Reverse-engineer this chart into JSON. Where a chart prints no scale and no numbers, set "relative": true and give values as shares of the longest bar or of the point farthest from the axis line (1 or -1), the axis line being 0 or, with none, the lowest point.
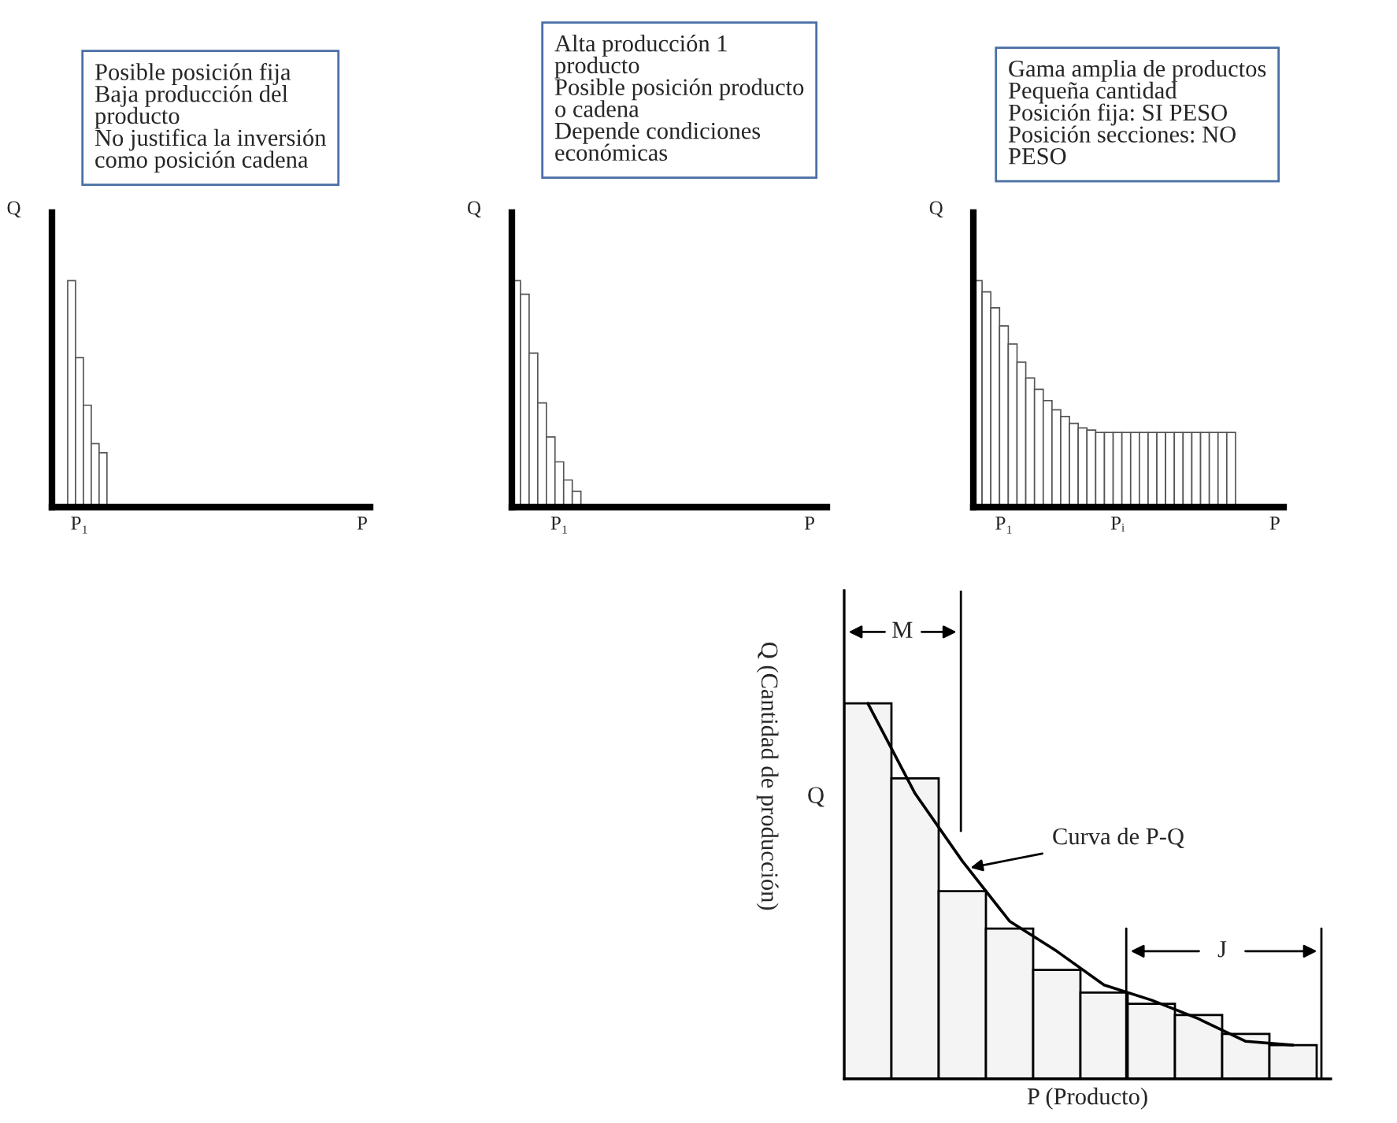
{
  "chart_data": [
    {
      "type": "bar",
      "relative": true,
      "ylabel": "Q",
      "color": "#ffffff",
      "legend": false,
      "annotations": [
        "Posible posición fija\nBaja producción del\nproducto\nNo justifica la inversión\ncomo posición cadena"
      ],
      "categories": [
        null,
        null,
        null,
        "P₁",
        null,
        null,
        null,
        null,
        null,
        null,
        null,
        null,
        null,
        null,
        null,
        null,
        null,
        null,
        null,
        null,
        null,
        null,
        null,
        null,
        null,
        null,
        null,
        null,
        null,
        null,
        null,
        null,
        null,
        null,
        null,
        null,
        null,
        null,
        null,
        "P"
      ],
      "values": [
        null,
        null,
        1,
        0.66,
        0.45,
        0.28,
        0.24,
        null,
        null,
        null,
        null,
        null,
        null,
        null,
        null,
        null,
        null,
        null,
        null,
        null,
        null,
        null,
        null,
        null,
        null,
        null,
        null,
        null,
        null,
        null,
        null,
        null,
        null,
        null,
        null,
        null,
        null,
        null,
        null,
        null
      ]
    },
    {
      "type": "bar",
      "relative": true,
      "ylabel": "Q",
      "color": "#ffffff",
      "legend": false,
      "annotations": [
        "Alta producción 1\nproducto\nPosible posición producto\no cadena\nDepende condiciones\neconómicas"
      ],
      "categories": [
        null,
        null,
        null,
        null,
        null,
        "P₁",
        null,
        null,
        null,
        null,
        null,
        null,
        null,
        null,
        null,
        null,
        null,
        null,
        null,
        null,
        null,
        null,
        null,
        null,
        null,
        null,
        null,
        null,
        null,
        null,
        null,
        null,
        null,
        null,
        "P",
        null
      ],
      "values": [
        1,
        0.94,
        0.68,
        0.46,
        0.31,
        0.2,
        0.12,
        0.07,
        null,
        null,
        null,
        null,
        null,
        null,
        null,
        null,
        null,
        null,
        null,
        null,
        null,
        null,
        null,
        null,
        null,
        null,
        null,
        null,
        null,
        null,
        null,
        null,
        null,
        null,
        null,
        null
      ]
    },
    {
      "type": "bar",
      "relative": true,
      "ylabel": "Q",
      "color": "#ffffff",
      "legend": false,
      "annotations": [
        "Gama amplia de productos\nPequeña cantidad\nPosición fija: SI PESO\nPosición secciones: NO\nPESO"
      ],
      "categories": [
        null,
        null,
        null,
        "P₁",
        null,
        null,
        null,
        null,
        null,
        null,
        null,
        null,
        null,
        null,
        null,
        null,
        "Pᵢ",
        null,
        null,
        null,
        null,
        null,
        null,
        null,
        null,
        null,
        null,
        null,
        null,
        null,
        null,
        null,
        null,
        null,
        "P"
      ],
      "values": [
        1,
        0.95,
        0.88,
        0.8,
        0.72,
        0.64,
        0.57,
        0.52,
        0.47,
        0.43,
        0.4,
        0.37,
        0.35,
        0.34,
        0.33,
        0.33,
        0.33,
        0.33,
        0.33,
        0.33,
        0.33,
        0.33,
        0.33,
        0.33,
        0.33,
        0.33,
        0.33,
        0.33,
        0.33,
        0.33,
        null,
        null,
        null,
        null,
        null
      ]
    },
    {
      "type": "bar",
      "relative": true,
      "xlabel": "P (Producto)",
      "ylabel": "Q (Cantidad de producción)",
      "legend": false,
      "annotations": [
        "Q",
        "M",
        "J",
        "Curva de P-Q"
      ],
      "categories": [
        null,
        null,
        null,
        null,
        null,
        null,
        null,
        null,
        null,
        null
      ],
      "color": "#f4f4f4",
      "values": [
        1,
        0.8,
        0.5,
        0.4,
        0.29,
        0.23,
        0.2,
        0.17,
        0.12,
        0.09
      ]
    },
    {
      "type": "line",
      "relative": true,
      "color": "#000000",
      "legend": false,
      "categories": [
        null,
        null,
        null,
        null,
        null,
        null,
        null,
        null,
        null,
        null
      ],
      "values": [
        1,
        0.76,
        0.58,
        0.42,
        0.34,
        0.25,
        0.21,
        0.16,
        0.1,
        0.09
      ]
    }
  ]
}
